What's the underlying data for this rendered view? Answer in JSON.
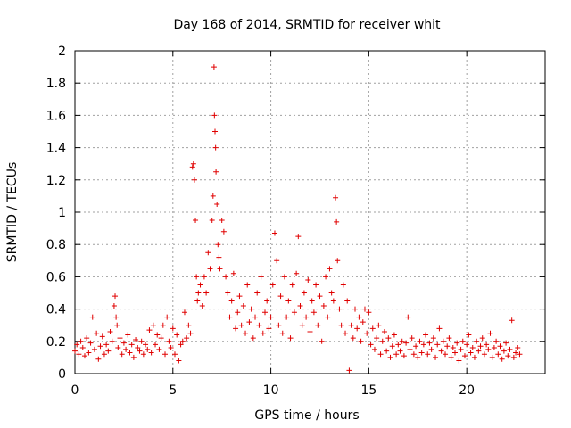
{
  "chart_data": {
    "type": "scatter",
    "title": "Day 168 of 2014, SRMTID for receiver whit",
    "xlabel": "GPS time / hours",
    "ylabel": "SRMTID / TECUs",
    "xlim": [
      0,
      24
    ],
    "ylim": [
      0,
      2
    ],
    "xticks": [
      0,
      5,
      10,
      15,
      20
    ],
    "xtick_labels": [
      "0",
      "5",
      "10",
      "15",
      "20"
    ],
    "yticks": [
      0,
      0.2,
      0.4,
      0.6,
      0.8,
      1,
      1.2,
      1.4,
      1.6,
      1.8,
      2
    ],
    "ytick_labels": [
      "0",
      "0.2",
      "0.4",
      "0.6",
      "0.8",
      "1",
      "1.2",
      "1.4",
      "1.6",
      "1.8",
      "2"
    ],
    "grid": true,
    "marker": "+",
    "marker_color": "#e00000",
    "series": [
      {
        "name": "SRMTID",
        "points": [
          [
            0.0,
            0.14
          ],
          [
            0.1,
            0.18
          ],
          [
            0.2,
            0.12
          ],
          [
            0.3,
            0.2
          ],
          [
            0.4,
            0.16
          ],
          [
            0.5,
            0.11
          ],
          [
            0.6,
            0.22
          ],
          [
            0.7,
            0.13
          ],
          [
            0.8,
            0.19
          ],
          [
            0.9,
            0.35
          ],
          [
            1.0,
            0.15
          ],
          [
            1.1,
            0.25
          ],
          [
            1.2,
            0.09
          ],
          [
            1.3,
            0.17
          ],
          [
            1.4,
            0.23
          ],
          [
            1.5,
            0.12
          ],
          [
            1.6,
            0.18
          ],
          [
            1.7,
            0.14
          ],
          [
            1.8,
            0.26
          ],
          [
            1.9,
            0.2
          ],
          [
            2.0,
            0.42
          ],
          [
            2.05,
            0.48
          ],
          [
            2.1,
            0.35
          ],
          [
            2.15,
            0.3
          ],
          [
            2.2,
            0.16
          ],
          [
            2.3,
            0.22
          ],
          [
            2.4,
            0.12
          ],
          [
            2.5,
            0.19
          ],
          [
            2.6,
            0.15
          ],
          [
            2.7,
            0.24
          ],
          [
            2.8,
            0.13
          ],
          [
            2.9,
            0.18
          ],
          [
            3.0,
            0.1
          ],
          [
            3.1,
            0.21
          ],
          [
            3.2,
            0.16
          ],
          [
            3.3,
            0.14
          ],
          [
            3.4,
            0.2
          ],
          [
            3.5,
            0.12
          ],
          [
            3.6,
            0.18
          ],
          [
            3.7,
            0.15
          ],
          [
            3.8,
            0.27
          ],
          [
            3.9,
            0.13
          ],
          [
            4.0,
            0.3
          ],
          [
            4.1,
            0.18
          ],
          [
            4.2,
            0.24
          ],
          [
            4.3,
            0.15
          ],
          [
            4.4,
            0.22
          ],
          [
            4.5,
            0.3
          ],
          [
            4.6,
            0.12
          ],
          [
            4.7,
            0.35
          ],
          [
            4.8,
            0.2
          ],
          [
            4.9,
            0.16
          ],
          [
            5.0,
            0.28
          ],
          [
            5.1,
            0.12
          ],
          [
            5.2,
            0.24
          ],
          [
            5.3,
            0.08
          ],
          [
            5.4,
            0.18
          ],
          [
            5.5,
            0.2
          ],
          [
            5.6,
            0.38
          ],
          [
            5.7,
            0.22
          ],
          [
            5.8,
            0.3
          ],
          [
            5.9,
            0.25
          ],
          [
            6.0,
            1.28
          ],
          [
            6.05,
            1.3
          ],
          [
            6.1,
            1.2
          ],
          [
            6.15,
            0.95
          ],
          [
            6.2,
            0.6
          ],
          [
            6.25,
            0.45
          ],
          [
            6.3,
            0.5
          ],
          [
            6.4,
            0.55
          ],
          [
            6.5,
            0.42
          ],
          [
            6.6,
            0.6
          ],
          [
            6.7,
            0.5
          ],
          [
            6.8,
            0.75
          ],
          [
            6.9,
            0.65
          ],
          [
            7.0,
            0.95
          ],
          [
            7.05,
            1.1
          ],
          [
            7.1,
            1.9
          ],
          [
            7.12,
            1.6
          ],
          [
            7.15,
            1.5
          ],
          [
            7.18,
            1.4
          ],
          [
            7.2,
            1.25
          ],
          [
            7.25,
            1.05
          ],
          [
            7.3,
            0.8
          ],
          [
            7.35,
            0.72
          ],
          [
            7.4,
            0.65
          ],
          [
            7.5,
            0.95
          ],
          [
            7.6,
            0.88
          ],
          [
            7.7,
            0.6
          ],
          [
            7.8,
            0.5
          ],
          [
            7.9,
            0.35
          ],
          [
            8.0,
            0.45
          ],
          [
            8.1,
            0.62
          ],
          [
            8.2,
            0.28
          ],
          [
            8.3,
            0.38
          ],
          [
            8.4,
            0.48
          ],
          [
            8.5,
            0.3
          ],
          [
            8.6,
            0.42
          ],
          [
            8.7,
            0.25
          ],
          [
            8.8,
            0.55
          ],
          [
            8.9,
            0.32
          ],
          [
            9.0,
            0.4
          ],
          [
            9.1,
            0.22
          ],
          [
            9.2,
            0.35
          ],
          [
            9.3,
            0.5
          ],
          [
            9.4,
            0.3
          ],
          [
            9.5,
            0.6
          ],
          [
            9.6,
            0.25
          ],
          [
            9.7,
            0.38
          ],
          [
            9.8,
            0.45
          ],
          [
            9.9,
            0.28
          ],
          [
            10.0,
            0.35
          ],
          [
            10.1,
            0.55
          ],
          [
            10.2,
            0.87
          ],
          [
            10.3,
            0.7
          ],
          [
            10.4,
            0.3
          ],
          [
            10.5,
            0.48
          ],
          [
            10.6,
            0.25
          ],
          [
            10.7,
            0.6
          ],
          [
            10.8,
            0.35
          ],
          [
            10.9,
            0.45
          ],
          [
            11.0,
            0.22
          ],
          [
            11.1,
            0.55
          ],
          [
            11.2,
            0.38
          ],
          [
            11.3,
            0.62
          ],
          [
            11.4,
            0.85
          ],
          [
            11.5,
            0.42
          ],
          [
            11.6,
            0.3
          ],
          [
            11.7,
            0.5
          ],
          [
            11.8,
            0.35
          ],
          [
            11.9,
            0.58
          ],
          [
            12.0,
            0.26
          ],
          [
            12.1,
            0.45
          ],
          [
            12.2,
            0.38
          ],
          [
            12.3,
            0.55
          ],
          [
            12.4,
            0.3
          ],
          [
            12.5,
            0.48
          ],
          [
            12.6,
            0.2
          ],
          [
            12.7,
            0.42
          ],
          [
            12.8,
            0.6
          ],
          [
            12.9,
            0.35
          ],
          [
            13.0,
            0.65
          ],
          [
            13.1,
            0.5
          ],
          [
            13.2,
            0.45
          ],
          [
            13.3,
            1.09
          ],
          [
            13.35,
            0.94
          ],
          [
            13.4,
            0.7
          ],
          [
            13.5,
            0.4
          ],
          [
            13.6,
            0.3
          ],
          [
            13.7,
            0.55
          ],
          [
            13.8,
            0.25
          ],
          [
            13.9,
            0.45
          ],
          [
            14.0,
            0.02
          ],
          [
            14.1,
            0.3
          ],
          [
            14.2,
            0.22
          ],
          [
            14.3,
            0.4
          ],
          [
            14.4,
            0.28
          ],
          [
            14.5,
            0.35
          ],
          [
            14.6,
            0.2
          ],
          [
            14.7,
            0.32
          ],
          [
            14.8,
            0.4
          ],
          [
            14.9,
            0.25
          ],
          [
            15.0,
            0.38
          ],
          [
            15.1,
            0.18
          ],
          [
            15.2,
            0.28
          ],
          [
            15.3,
            0.15
          ],
          [
            15.4,
            0.22
          ],
          [
            15.5,
            0.3
          ],
          [
            15.6,
            0.12
          ],
          [
            15.7,
            0.2
          ],
          [
            15.8,
            0.26
          ],
          [
            15.9,
            0.14
          ],
          [
            16.0,
            0.22
          ],
          [
            16.1,
            0.1
          ],
          [
            16.2,
            0.17
          ],
          [
            16.3,
            0.24
          ],
          [
            16.4,
            0.12
          ],
          [
            16.5,
            0.18
          ],
          [
            16.6,
            0.14
          ],
          [
            16.7,
            0.2
          ],
          [
            16.8,
            0.11
          ],
          [
            16.9,
            0.19
          ],
          [
            17.0,
            0.35
          ],
          [
            17.1,
            0.15
          ],
          [
            17.2,
            0.22
          ],
          [
            17.3,
            0.12
          ],
          [
            17.4,
            0.17
          ],
          [
            17.5,
            0.1
          ],
          [
            17.6,
            0.2
          ],
          [
            17.7,
            0.13
          ],
          [
            17.8,
            0.18
          ],
          [
            17.9,
            0.24
          ],
          [
            18.0,
            0.12
          ],
          [
            18.1,
            0.19
          ],
          [
            18.2,
            0.15
          ],
          [
            18.3,
            0.22
          ],
          [
            18.4,
            0.1
          ],
          [
            18.5,
            0.18
          ],
          [
            18.6,
            0.28
          ],
          [
            18.7,
            0.14
          ],
          [
            18.8,
            0.2
          ],
          [
            18.9,
            0.12
          ],
          [
            19.0,
            0.17
          ],
          [
            19.1,
            0.22
          ],
          [
            19.2,
            0.1
          ],
          [
            19.3,
            0.16
          ],
          [
            19.4,
            0.13
          ],
          [
            19.5,
            0.19
          ],
          [
            19.6,
            0.08
          ],
          [
            19.7,
            0.15
          ],
          [
            19.8,
            0.2
          ],
          [
            19.9,
            0.11
          ],
          [
            20.0,
            0.18
          ],
          [
            20.1,
            0.24
          ],
          [
            20.2,
            0.13
          ],
          [
            20.3,
            0.16
          ],
          [
            20.4,
            0.1
          ],
          [
            20.5,
            0.2
          ],
          [
            20.6,
            0.14
          ],
          [
            20.7,
            0.17
          ],
          [
            20.8,
            0.22
          ],
          [
            20.9,
            0.12
          ],
          [
            21.0,
            0.18
          ],
          [
            21.1,
            0.15
          ],
          [
            21.2,
            0.25
          ],
          [
            21.3,
            0.1
          ],
          [
            21.4,
            0.16
          ],
          [
            21.5,
            0.2
          ],
          [
            21.6,
            0.12
          ],
          [
            21.7,
            0.17
          ],
          [
            21.8,
            0.09
          ],
          [
            21.9,
            0.14
          ],
          [
            22.0,
            0.19
          ],
          [
            22.1,
            0.11
          ],
          [
            22.2,
            0.15
          ],
          [
            22.3,
            0.33
          ],
          [
            22.4,
            0.1
          ],
          [
            22.5,
            0.13
          ],
          [
            22.6,
            0.16
          ],
          [
            22.7,
            0.12
          ]
        ]
      }
    ]
  }
}
